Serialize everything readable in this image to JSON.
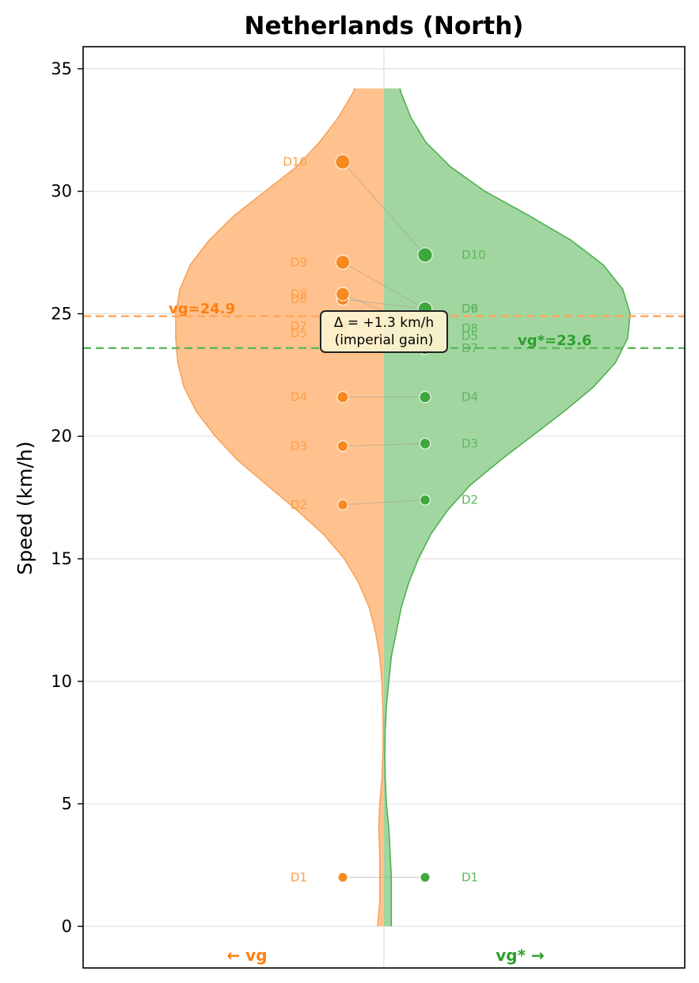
{
  "chart_data": {
    "type": "split-violin",
    "title": "Netherlands (North)",
    "ylabel": "Speed (km/h)",
    "ylim": [
      -1.7,
      35.9
    ],
    "yticks": [
      0,
      5,
      10,
      15,
      20,
      25,
      30,
      35
    ],
    "grid": true,
    "left": {
      "name": "vg",
      "side_label": "← vg",
      "color": "#ff7f0e",
      "fill": "#ffc28f",
      "mean": 24.9,
      "mean_label": "vg=24.9",
      "points": [
        {
          "label": "D1",
          "value": 2.0
        },
        {
          "label": "D2",
          "value": 17.2
        },
        {
          "label": "D3",
          "value": 19.6
        },
        {
          "label": "D4",
          "value": 21.6
        },
        {
          "label": "D5",
          "value": 24.2
        },
        {
          "label": "D6",
          "value": 25.6
        },
        {
          "label": "D7",
          "value": 24.5
        },
        {
          "label": "D8",
          "value": 25.8
        },
        {
          "label": "D9",
          "value": 27.1
        },
        {
          "label": "D10",
          "value": 31.2
        }
      ]
    },
    "right": {
      "name": "vg*",
      "side_label": "vg* →",
      "color": "#2ca02c",
      "fill": "#a2d6a0",
      "mean": 23.6,
      "mean_label": "vg*=23.6",
      "points": [
        {
          "label": "D1",
          "value": 2.0
        },
        {
          "label": "D2",
          "value": 17.4
        },
        {
          "label": "D3",
          "value": 19.7
        },
        {
          "label": "D4",
          "value": 21.6
        },
        {
          "label": "D5",
          "value": 24.1
        },
        {
          "label": "D6",
          "value": 25.2
        },
        {
          "label": "D7",
          "value": 23.6
        },
        {
          "label": "D8",
          "value": 24.4
        },
        {
          "label": "D9",
          "value": 25.2
        },
        {
          "label": "D10",
          "value": 27.4
        }
      ]
    },
    "annotation": {
      "line1": "Δ = +1.3 km/h",
      "line2": "(imperial gain)",
      "value": 1.3
    },
    "left_profile": [
      [
        0,
        0.03
      ],
      [
        1,
        0.02
      ],
      [
        2,
        0.02
      ],
      [
        3,
        0.02
      ],
      [
        4,
        0.025
      ],
      [
        5,
        0.02
      ],
      [
        6,
        0.01
      ],
      [
        7,
        0.005
      ],
      [
        8,
        0.004
      ],
      [
        9,
        0.005
      ],
      [
        10,
        0.01
      ],
      [
        11,
        0.02
      ],
      [
        12,
        0.04
      ],
      [
        13,
        0.07
      ],
      [
        14,
        0.12
      ],
      [
        15,
        0.19
      ],
      [
        16,
        0.29
      ],
      [
        17,
        0.42
      ],
      [
        18,
        0.56
      ],
      [
        19,
        0.7
      ],
      [
        20,
        0.81
      ],
      [
        21,
        0.9
      ],
      [
        22,
        0.96
      ],
      [
        23,
        0.99
      ],
      [
        24,
        1.0
      ],
      [
        25,
        1.0
      ],
      [
        26,
        0.98
      ],
      [
        27,
        0.93
      ],
      [
        28,
        0.84
      ],
      [
        29,
        0.72
      ],
      [
        30,
        0.57
      ],
      [
        31,
        0.42
      ],
      [
        32,
        0.31
      ],
      [
        33,
        0.22
      ],
      [
        34,
        0.15
      ],
      [
        34.2,
        0.14
      ]
    ],
    "right_profile": [
      [
        0,
        0.03
      ],
      [
        1,
        0.03
      ],
      [
        2,
        0.03
      ],
      [
        3,
        0.025
      ],
      [
        4,
        0.02
      ],
      [
        5,
        0.01
      ],
      [
        6,
        0.005
      ],
      [
        7,
        0.004
      ],
      [
        8,
        0.005
      ],
      [
        9,
        0.01
      ],
      [
        10,
        0.02
      ],
      [
        11,
        0.03
      ],
      [
        12,
        0.05
      ],
      [
        13,
        0.07
      ],
      [
        14,
        0.1
      ],
      [
        15,
        0.14
      ],
      [
        16,
        0.19
      ],
      [
        17,
        0.26
      ],
      [
        18,
        0.35
      ],
      [
        19,
        0.47
      ],
      [
        20,
        0.6
      ],
      [
        21,
        0.73
      ],
      [
        22,
        0.85
      ],
      [
        23,
        0.94
      ],
      [
        24,
        0.99
      ],
      [
        25,
        1.0
      ],
      [
        26,
        0.97
      ],
      [
        27,
        0.89
      ],
      [
        28,
        0.76
      ],
      [
        29,
        0.59
      ],
      [
        30,
        0.41
      ],
      [
        31,
        0.27
      ],
      [
        32,
        0.17
      ],
      [
        33,
        0.11
      ],
      [
        34,
        0.07
      ],
      [
        34.2,
        0.065
      ]
    ]
  }
}
